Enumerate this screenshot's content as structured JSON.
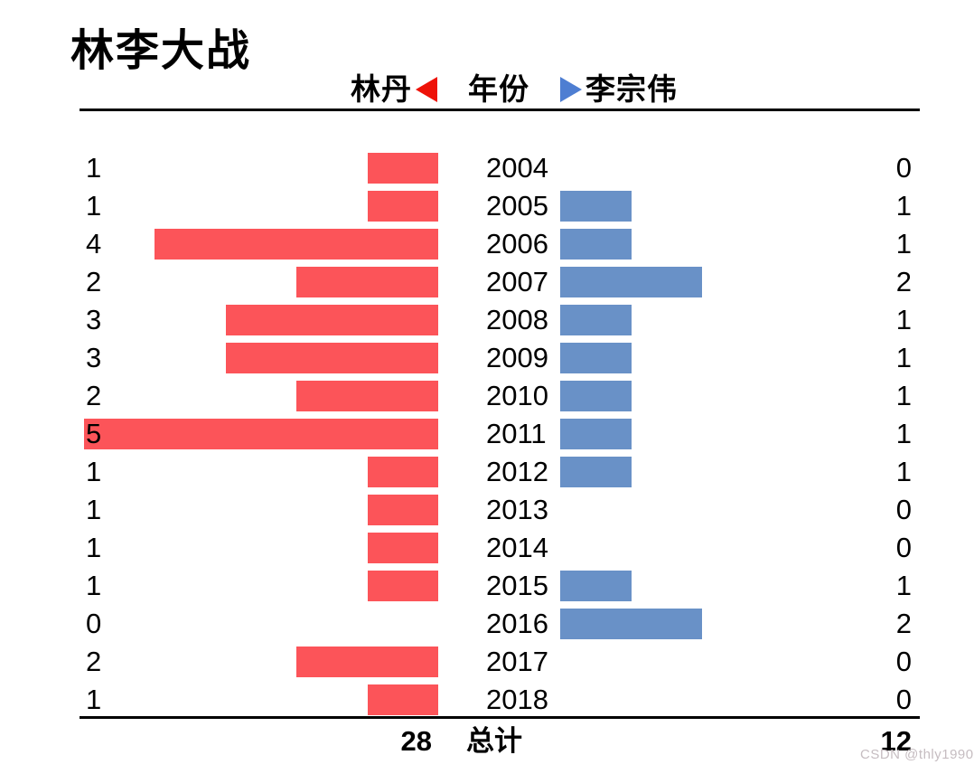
{
  "title": "林李大战",
  "legend": {
    "lin_dan": "林丹",
    "center": "年份",
    "lee_zong_wei": "李宗伟"
  },
  "totals": {
    "lin_dan": "28",
    "label": "总计",
    "lee_zong_wei": "12"
  },
  "watermark": "CSDN @thly1990",
  "colors": {
    "lin_dan_bar": "#fc5459",
    "lee_zong_wei_bar": "#6991c7",
    "legend_left_arrow": "#ee1208",
    "legend_right_arrow": "#4e7ed2",
    "watermark": "#c6bdc1",
    "text": "#000000"
  },
  "chart_data": {
    "type": "bar",
    "variant": "diverging-horizontal (butterfly/tornado)",
    "title": "林李大战",
    "center_axis_label": "年份",
    "total_label": "总计",
    "categories": [
      "2004",
      "2005",
      "2006",
      "2007",
      "2008",
      "2009",
      "2010",
      "2011",
      "2012",
      "2013",
      "2014",
      "2015",
      "2016",
      "2017",
      "2018"
    ],
    "series": [
      {
        "name": "林丹",
        "side": "left",
        "color": "#fc5459",
        "values": [
          1,
          1,
          4,
          2,
          3,
          3,
          2,
          5,
          1,
          1,
          1,
          1,
          0,
          2,
          1
        ],
        "total": 28
      },
      {
        "name": "李宗伟",
        "side": "right",
        "color": "#6991c7",
        "values": [
          0,
          1,
          1,
          2,
          1,
          1,
          1,
          1,
          1,
          0,
          0,
          1,
          2,
          0,
          0
        ],
        "total": 12
      }
    ],
    "value_axis_range_per_side": [
      0,
      5
    ],
    "grid": false,
    "legend_position": "top-center",
    "value_labels": "shown at outer edges of each row"
  }
}
